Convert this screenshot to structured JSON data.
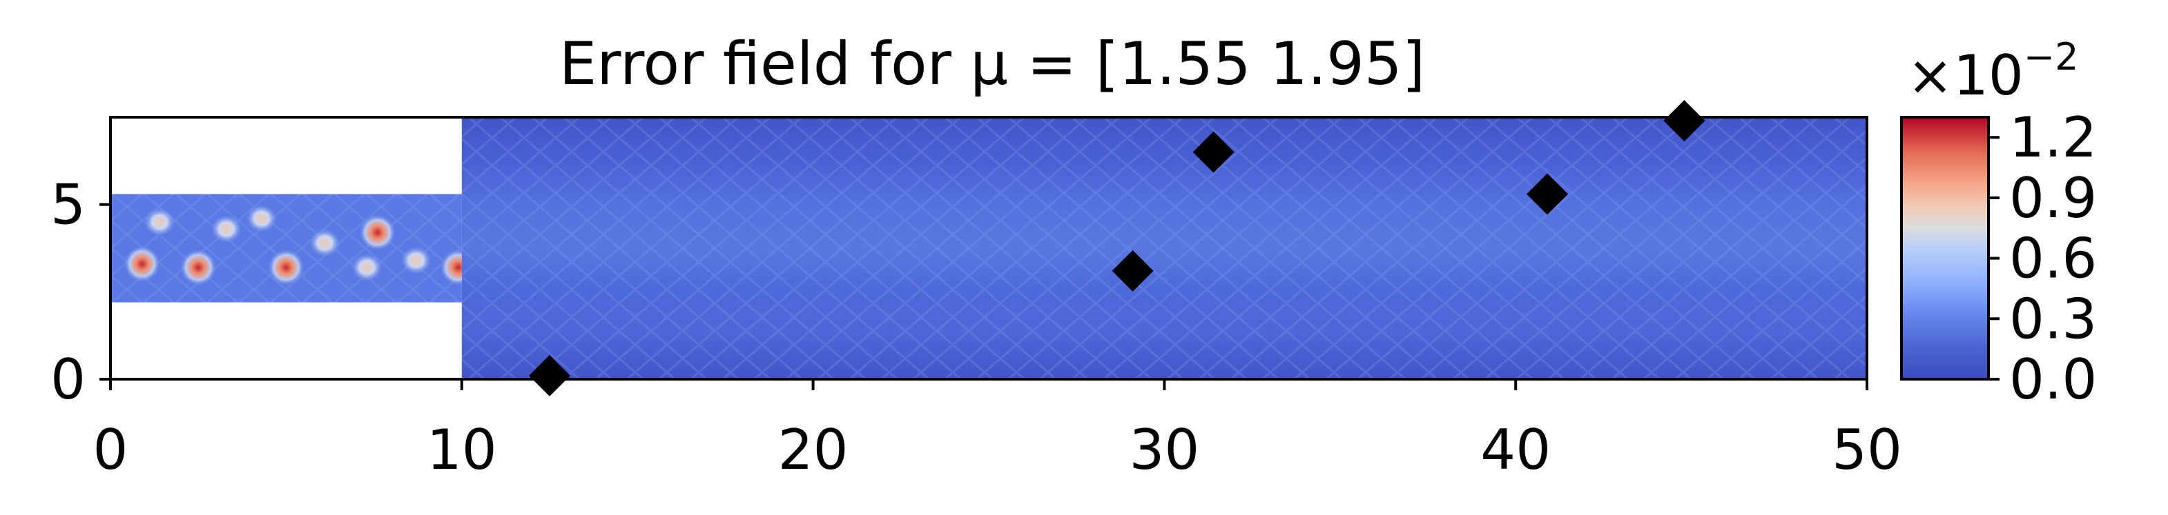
{
  "chart_data": {
    "type": "heatmap",
    "title": "Error field for μ = [1.55 1.95]",
    "xlim": [
      0,
      50
    ],
    "ylim": [
      0,
      7.5
    ],
    "x_ticks": [
      "0",
      "10",
      "20",
      "30",
      "40",
      "50"
    ],
    "y_ticks": [
      "0",
      "5"
    ],
    "domain": {
      "shape": "backward-facing step channel",
      "inlet_region": {
        "x": [
          0,
          10
        ],
        "y": [
          2.2,
          5.3
        ]
      },
      "main_region": {
        "x": [
          10,
          50
        ],
        "y": [
          0,
          7.5
        ]
      }
    },
    "markers": {
      "symbol": "diamond",
      "color": "#000000",
      "points": [
        {
          "x": 12.5,
          "y": 0.1
        },
        {
          "x": 29.1,
          "y": 3.1
        },
        {
          "x": 31.4,
          "y": 6.5
        },
        {
          "x": 40.9,
          "y": 5.3
        },
        {
          "x": 44.8,
          "y": 7.4
        }
      ]
    },
    "colorbar": {
      "cmap": "coolwarm",
      "scale_label": "×10",
      "scale_exponent": "−2",
      "range": [
        0.0,
        1.3
      ],
      "tick_values": [
        0.0,
        0.3,
        0.6,
        0.9,
        1.2
      ],
      "tick_labels": [
        "0.0",
        "0.3",
        "0.6",
        "0.9",
        "1.2"
      ]
    },
    "hotspots_region": "inlet channel (x 0–10) peaks near 1.2",
    "colors": {
      "low": "#3b4cc0",
      "mid": "#dddddd",
      "high": "#b40426"
    }
  }
}
